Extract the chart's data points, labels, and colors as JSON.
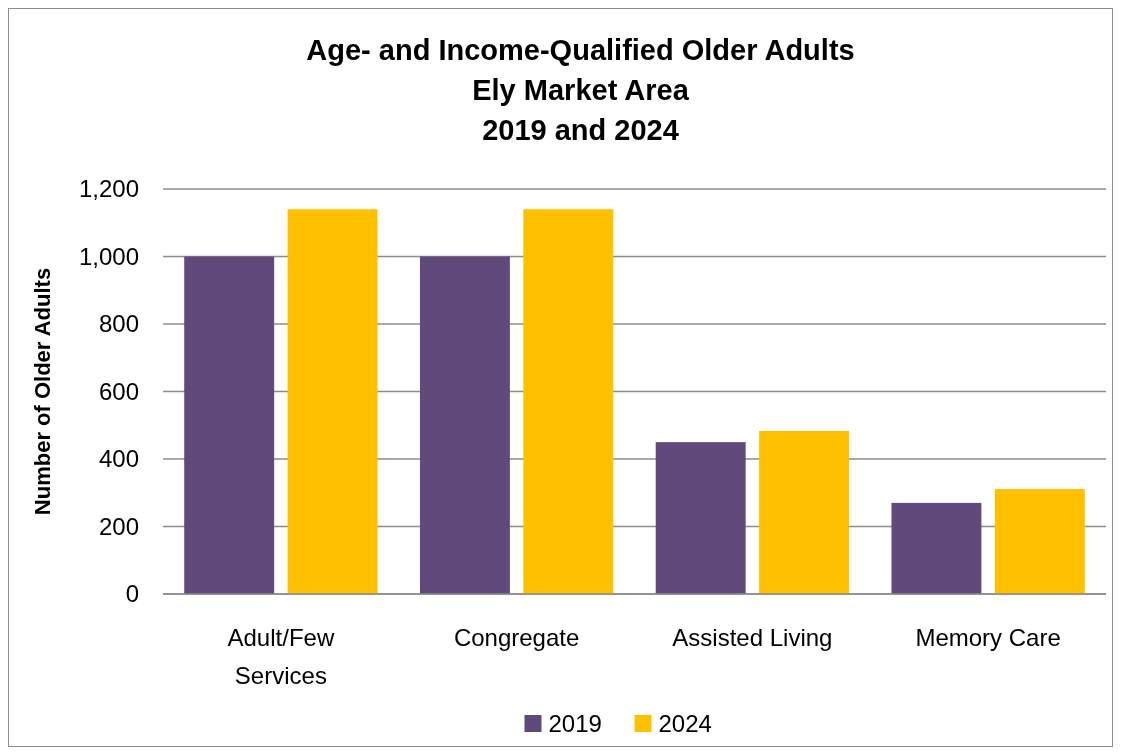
{
  "chart_data": {
    "type": "bar",
    "title": "Age- and Income-Qualified Older Adults\nEly Market Area\n2019 and 2024",
    "ylabel": "Number of Older Adults",
    "categories": [
      "Adult/Few Services",
      "Congregate",
      "Assisted Living",
      "Memory Care"
    ],
    "series": [
      {
        "name": "2019",
        "color": "#604a7b",
        "values": [
          1000,
          1000,
          450,
          270
        ]
      },
      {
        "name": "2024",
        "color": "#ffc000",
        "values": [
          1140,
          1140,
          483,
          311
        ]
      }
    ],
    "ylim": [
      0,
      1200
    ],
    "yticks": [
      {
        "value": 0,
        "label": "0"
      },
      {
        "value": 200,
        "label": "200"
      },
      {
        "value": 400,
        "label": "400"
      },
      {
        "value": 600,
        "label": "600"
      },
      {
        "value": 800,
        "label": "800"
      },
      {
        "value": 1000,
        "label": "1,000"
      },
      {
        "value": 1200,
        "label": "1,200"
      }
    ],
    "grid": "y",
    "legend": "bottom"
  }
}
